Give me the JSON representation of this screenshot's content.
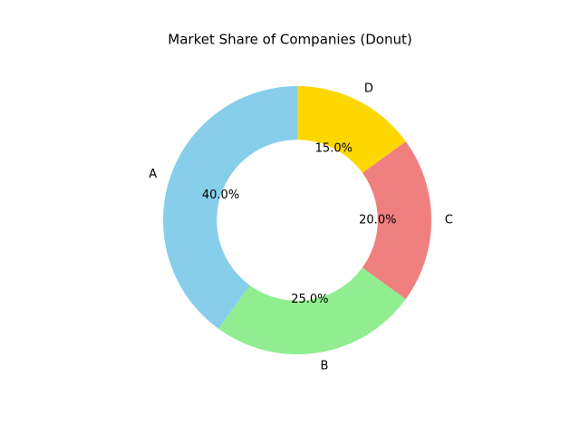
{
  "chart_data": {
    "type": "donut",
    "title": "Market Share of Companies (Donut)",
    "categories": [
      "A",
      "B",
      "C",
      "D"
    ],
    "values": [
      40,
      25,
      20,
      15
    ],
    "value_labels": [
      "40.0%",
      "25.0%",
      "20.0%",
      "15.0%"
    ],
    "colors": [
      "#87ceeb",
      "#90ee90",
      "#f08080",
      "#ffd700"
    ]
  }
}
